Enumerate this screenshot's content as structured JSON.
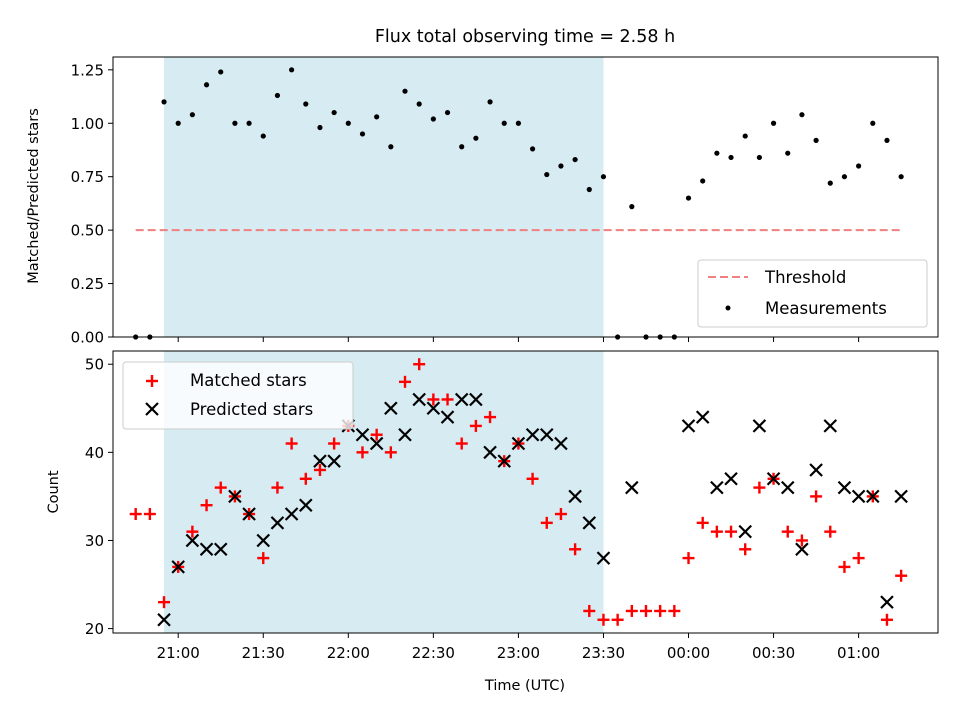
{
  "chart_data": [
    {
      "type": "scatter",
      "title": "Flux total observing time = 2.58 h",
      "ylabel": "Matched/Predicted stars",
      "xlabel": "",
      "ylim": [
        0,
        1.31
      ],
      "yticks": [
        "0.00",
        "0.25",
        "0.50",
        "0.75",
        "1.00",
        "1.25"
      ],
      "threshold": 0.5,
      "threshold_color": "#f08080",
      "shaded_region_color": "#add8e6",
      "legend_position": "lower right",
      "legend": [
        "Threshold",
        "Measurements"
      ],
      "series": [
        {
          "name": "Measurements",
          "color": "#000000",
          "points": [
            [
              "20:45",
              0.0
            ],
            [
              "20:50",
              0.0
            ],
            [
              "20:55",
              1.1
            ],
            [
              "21:00",
              1.0
            ],
            [
              "21:05",
              1.04
            ],
            [
              "21:10",
              1.18
            ],
            [
              "21:15",
              1.24
            ],
            [
              "21:20",
              1.0
            ],
            [
              "21:25",
              1.0
            ],
            [
              "21:30",
              0.94
            ],
            [
              "21:35",
              1.13
            ],
            [
              "21:40",
              1.25
            ],
            [
              "21:45",
              1.09
            ],
            [
              "21:50",
              0.98
            ],
            [
              "21:55",
              1.05
            ],
            [
              "22:00",
              1.0
            ],
            [
              "22:05",
              0.95
            ],
            [
              "22:10",
              1.03
            ],
            [
              "22:15",
              0.89
            ],
            [
              "22:20",
              1.15
            ],
            [
              "22:25",
              1.09
            ],
            [
              "22:30",
              1.02
            ],
            [
              "22:35",
              1.05
            ],
            [
              "22:40",
              0.89
            ],
            [
              "22:45",
              0.93
            ],
            [
              "22:50",
              1.1
            ],
            [
              "22:55",
              1.0
            ],
            [
              "23:00",
              1.0
            ],
            [
              "23:05",
              0.88
            ],
            [
              "23:10",
              0.76
            ],
            [
              "23:15",
              0.8
            ],
            [
              "23:20",
              0.83
            ],
            [
              "23:25",
              0.69
            ],
            [
              "23:30",
              0.75
            ],
            [
              "23:35",
              0.0
            ],
            [
              "23:40",
              0.61
            ],
            [
              "23:45",
              0.0
            ],
            [
              "23:50",
              0.0
            ],
            [
              "23:55",
              0.0
            ],
            [
              "00:00",
              0.65
            ],
            [
              "00:05",
              0.73
            ],
            [
              "00:10",
              0.86
            ],
            [
              "00:15",
              0.84
            ],
            [
              "00:20",
              0.94
            ],
            [
              "00:25",
              0.84
            ],
            [
              "00:30",
              1.0
            ],
            [
              "00:35",
              0.86
            ],
            [
              "00:40",
              1.04
            ],
            [
              "00:45",
              0.92
            ],
            [
              "00:50",
              0.72
            ],
            [
              "00:55",
              0.75
            ],
            [
              "01:00",
              0.8
            ],
            [
              "01:05",
              1.0
            ],
            [
              "01:10",
              0.92
            ],
            [
              "01:15",
              0.75
            ]
          ]
        }
      ]
    },
    {
      "type": "scatter",
      "title": "",
      "xlabel": "Time (UTC)",
      "ylabel": "Count",
      "ylim": [
        19.5,
        51.5
      ],
      "yticks": [
        "20",
        "30",
        "40",
        "50"
      ],
      "xticks": [
        "21:00",
        "21:30",
        "22:00",
        "22:30",
        "23:00",
        "23:30",
        "00:00",
        "00:30",
        "01:00"
      ],
      "legend_position": "upper left",
      "legend": [
        "Matched stars",
        "Predicted stars"
      ],
      "series": [
        {
          "name": "Matched stars",
          "marker": "+",
          "color": "#ff0000",
          "points": [
            [
              "20:45",
              33
            ],
            [
              "20:50",
              33
            ],
            [
              "20:55",
              23
            ],
            [
              "21:00",
              27
            ],
            [
              "21:05",
              31
            ],
            [
              "21:10",
              34
            ],
            [
              "21:15",
              36
            ],
            [
              "21:20",
              35
            ],
            [
              "21:25",
              33
            ],
            [
              "21:30",
              28
            ],
            [
              "21:35",
              36
            ],
            [
              "21:40",
              41
            ],
            [
              "21:45",
              37
            ],
            [
              "21:50",
              38
            ],
            [
              "21:55",
              41
            ],
            [
              "22:00",
              43
            ],
            [
              "22:05",
              40
            ],
            [
              "22:10",
              42
            ],
            [
              "22:15",
              40
            ],
            [
              "22:20",
              48
            ],
            [
              "22:25",
              50
            ],
            [
              "22:30",
              46
            ],
            [
              "22:35",
              46
            ],
            [
              "22:40",
              41
            ],
            [
              "22:45",
              43
            ],
            [
              "22:50",
              44
            ],
            [
              "22:55",
              39
            ],
            [
              "23:00",
              41
            ],
            [
              "23:05",
              37
            ],
            [
              "23:10",
              32
            ],
            [
              "23:15",
              33
            ],
            [
              "23:20",
              29
            ],
            [
              "23:25",
              22
            ],
            [
              "23:30",
              21
            ],
            [
              "23:35",
              21
            ],
            [
              "23:40",
              22
            ],
            [
              "23:45",
              22
            ],
            [
              "23:50",
              22
            ],
            [
              "23:55",
              22
            ],
            [
              "00:00",
              28
            ],
            [
              "00:05",
              32
            ],
            [
              "00:10",
              31
            ],
            [
              "00:15",
              31
            ],
            [
              "00:20",
              29
            ],
            [
              "00:25",
              36
            ],
            [
              "00:30",
              37
            ],
            [
              "00:35",
              31
            ],
            [
              "00:40",
              30
            ],
            [
              "00:45",
              35
            ],
            [
              "00:50",
              31
            ],
            [
              "00:55",
              27
            ],
            [
              "01:00",
              28
            ],
            [
              "01:05",
              35
            ],
            [
              "01:10",
              21
            ],
            [
              "01:15",
              26
            ]
          ]
        },
        {
          "name": "Predicted stars",
          "marker": "x",
          "color": "#000000",
          "points": [
            [
              "20:55",
              21
            ],
            [
              "21:00",
              27
            ],
            [
              "21:05",
              30
            ],
            [
              "21:10",
              29
            ],
            [
              "21:15",
              29
            ],
            [
              "21:20",
              35
            ],
            [
              "21:25",
              33
            ],
            [
              "21:30",
              30
            ],
            [
              "21:35",
              32
            ],
            [
              "21:40",
              33
            ],
            [
              "21:45",
              34
            ],
            [
              "21:50",
              39
            ],
            [
              "21:55",
              39
            ],
            [
              "22:00",
              43
            ],
            [
              "22:05",
              42
            ],
            [
              "22:10",
              41
            ],
            [
              "22:15",
              45
            ],
            [
              "22:20",
              42
            ],
            [
              "22:25",
              46
            ],
            [
              "22:30",
              45
            ],
            [
              "22:35",
              44
            ],
            [
              "22:40",
              46
            ],
            [
              "22:45",
              46
            ],
            [
              "22:50",
              40
            ],
            [
              "22:55",
              39
            ],
            [
              "23:00",
              41
            ],
            [
              "23:05",
              42
            ],
            [
              "23:10",
              42
            ],
            [
              "23:15",
              41
            ],
            [
              "23:20",
              35
            ],
            [
              "23:25",
              32
            ],
            [
              "23:30",
              28
            ],
            [
              "23:40",
              36
            ],
            [
              "00:00",
              43
            ],
            [
              "00:05",
              44
            ],
            [
              "00:10",
              36
            ],
            [
              "00:15",
              37
            ],
            [
              "00:20",
              31
            ],
            [
              "00:25",
              43
            ],
            [
              "00:30",
              37
            ],
            [
              "00:35",
              36
            ],
            [
              "00:40",
              29
            ],
            [
              "00:45",
              38
            ],
            [
              "00:50",
              43
            ],
            [
              "00:55",
              36
            ],
            [
              "01:00",
              35
            ],
            [
              "01:05",
              35
            ],
            [
              "01:10",
              23
            ],
            [
              "01:15",
              35
            ]
          ]
        }
      ]
    }
  ],
  "shaded_interval": [
    "20:55",
    "23:30"
  ],
  "xlim": [
    "20:37",
    "01:28"
  ]
}
